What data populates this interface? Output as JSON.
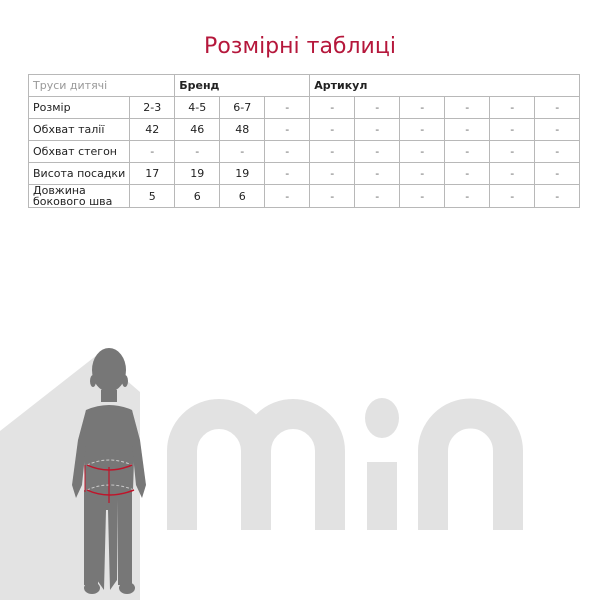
{
  "title": "Розмірні таблиці",
  "table": {
    "header": {
      "product": "Труси дитячі",
      "brand": "Бренд",
      "article": "Артикул"
    },
    "rows": [
      {
        "label": "Розмір",
        "values": [
          "2-3",
          "4-5",
          "6-7",
          "-",
          "-",
          "-",
          "-",
          "-",
          "-",
          "-"
        ]
      },
      {
        "label": "Обхват талії",
        "values": [
          "42",
          "46",
          "48",
          "-",
          "-",
          "-",
          "-",
          "-",
          "-",
          "-"
        ]
      },
      {
        "label": "Обхват стегон",
        "values": [
          "-",
          "-",
          "-",
          "-",
          "-",
          "-",
          "-",
          "-",
          "-",
          "-"
        ]
      },
      {
        "label": "Висота посадки",
        "values": [
          "17",
          "19",
          "19",
          "-",
          "-",
          "-",
          "-",
          "-",
          "-",
          "-"
        ]
      },
      {
        "label": "Довжина бокового шва",
        "values": [
          "5",
          "6",
          "6",
          "-",
          "-",
          "-",
          "-",
          "-",
          "-",
          "-"
        ]
      }
    ]
  },
  "colors": {
    "title": "#b5173b",
    "silhouette": "#777777",
    "logo": "#e2e2e2",
    "measure": "#c0142a"
  },
  "logo_text": "min"
}
